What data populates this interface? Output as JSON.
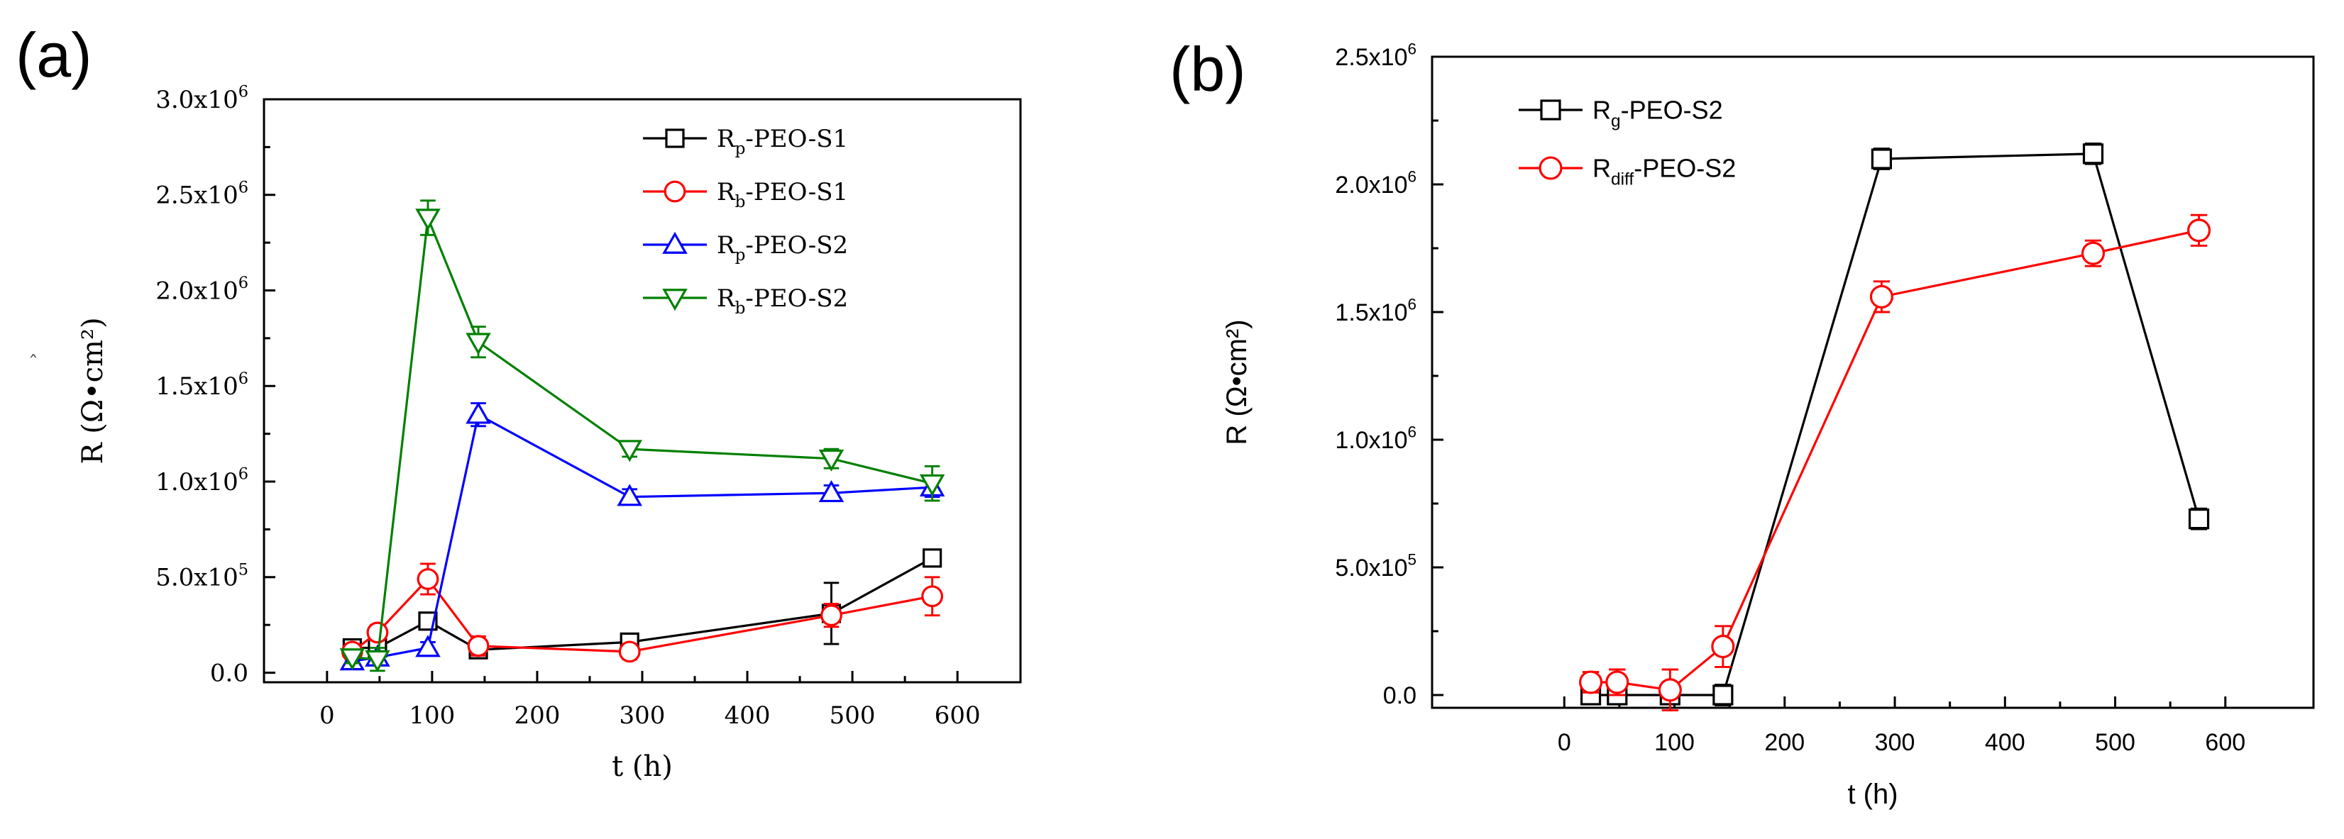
{
  "panels": {
    "a": {
      "label": "(a)"
    },
    "b": {
      "label": "(b)"
    }
  },
  "chart_data": [
    {
      "panel": "a",
      "type": "line",
      "title": "",
      "xlabel": "t (h)",
      "ylabel": "R (Ω•cm²)",
      "xlim": [
        -60,
        660
      ],
      "ylim": [
        -50000,
        3000000
      ],
      "xticks": [
        0,
        100,
        200,
        300,
        400,
        500,
        600
      ],
      "xtick_labels": [
        "0",
        "100",
        "200",
        "300",
        "400",
        "500",
        "600"
      ],
      "yticks": [
        0,
        500000,
        1000000,
        1500000,
        2000000,
        2500000,
        3000000
      ],
      "ytick_labels": [
        {
          "m": "0.0",
          "e": ""
        },
        {
          "m": "5.0x10",
          "e": "5"
        },
        {
          "m": "1.0x10",
          "e": "6"
        },
        {
          "m": "1.5x10",
          "e": "6"
        },
        {
          "m": "2.0x10",
          "e": "6"
        },
        {
          "m": "2.5x10",
          "e": "6"
        },
        {
          "m": "3.0x10",
          "e": "6"
        }
      ],
      "legend_position": "top-right",
      "series": [
        {
          "name": "Rp-PEO-S1",
          "base": "R",
          "sub": "p",
          "rest": "-PEO-S1",
          "color": "#000000",
          "marker": "square",
          "x": [
            24,
            48,
            96,
            144,
            288,
            480,
            576
          ],
          "y": [
            130000,
            130000,
            270000,
            120000,
            160000,
            310000,
            600000
          ],
          "err": [
            40000,
            30000,
            30000,
            40000,
            40000,
            160000,
            25000
          ]
        },
        {
          "name": "Rb-PEO-S1",
          "base": "R",
          "sub": "b",
          "rest": "-PEO-S1",
          "color": "#ff0000",
          "marker": "circle",
          "x": [
            24,
            48,
            96,
            144,
            288,
            480,
            576
          ],
          "y": [
            110000,
            210000,
            490000,
            140000,
            110000,
            300000,
            400000
          ],
          "err": [
            40000,
            40000,
            80000,
            50000,
            40000,
            60000,
            100000
          ]
        },
        {
          "name": "Rp-PEO-S2",
          "base": "R",
          "sub": "p",
          "rest": "-PEO-S2",
          "color": "#0000ff",
          "marker": "triangle-up",
          "x": [
            24,
            48,
            96,
            144,
            288,
            480,
            576
          ],
          "y": [
            60000,
            80000,
            130000,
            1350000,
            920000,
            940000,
            970000
          ],
          "err": [
            30000,
            30000,
            30000,
            60000,
            40000,
            40000,
            50000
          ]
        },
        {
          "name": "Rb-PEO-S2",
          "base": "R",
          "sub": "b",
          "rest": "-PEO-S2",
          "color": "#008000",
          "marker": "triangle-down",
          "x": [
            24,
            48,
            96,
            144,
            288,
            480,
            576
          ],
          "y": [
            80000,
            70000,
            2380000,
            1730000,
            1170000,
            1120000,
            990000
          ],
          "err": [
            30000,
            60000,
            90000,
            80000,
            40000,
            50000,
            90000
          ]
        }
      ]
    },
    {
      "panel": "b",
      "type": "line",
      "title": "",
      "xlabel": "t (h)",
      "ylabel": "R (Ω•cm²)",
      "xlim": [
        -120,
        680
      ],
      "ylim": [
        -50000,
        2500000
      ],
      "xticks": [
        0,
        100,
        200,
        300,
        400,
        500,
        600
      ],
      "xtick_labels": [
        "0",
        "100",
        "200",
        "300",
        "400",
        "500",
        "600"
      ],
      "yticks": [
        0,
        500000,
        1000000,
        1500000,
        2000000,
        2500000
      ],
      "ytick_labels": [
        {
          "m": "0.0",
          "e": ""
        },
        {
          "m": "5.0x10",
          "e": "5"
        },
        {
          "m": "1.0x10",
          "e": "6"
        },
        {
          "m": "1.5x10",
          "e": "6"
        },
        {
          "m": "2.0x10",
          "e": "6"
        },
        {
          "m": "2.5x10",
          "e": "6"
        }
      ],
      "legend_position": "top-left",
      "series": [
        {
          "name": "Rg-PEO-S2",
          "base": "R",
          "sub": "g",
          "rest": "-PEO-S2",
          "color": "#000000",
          "marker": "square",
          "x": [
            24,
            48,
            96,
            144,
            288,
            480,
            576
          ],
          "y": [
            0,
            0,
            0,
            0,
            2100000,
            2120000,
            690000
          ],
          "err": [
            20000,
            20000,
            20000,
            40000,
            40000,
            40000,
            40000
          ]
        },
        {
          "name": "Rdiff-PEO-S2",
          "base": "R",
          "sub": "diff",
          "rest": "-PEO-S2",
          "color": "#ff0000",
          "marker": "circle",
          "x": [
            24,
            48,
            96,
            144,
            288,
            480,
            576
          ],
          "y": [
            50000,
            50000,
            20000,
            190000,
            1560000,
            1730000,
            1820000
          ],
          "err": [
            40000,
            50000,
            80000,
            80000,
            60000,
            50000,
            60000
          ]
        }
      ]
    }
  ]
}
